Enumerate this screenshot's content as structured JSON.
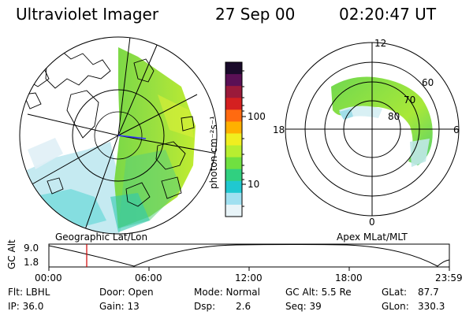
{
  "header": {
    "instrument": "Ultraviolet Imager",
    "date": "27 Sep 00",
    "time": "02:20:47 UT"
  },
  "left_panel": {
    "caption": "Geographic Lat/Lon"
  },
  "right_panel": {
    "caption": "Apex MLat/MLT",
    "mlt_labels": [
      "12",
      "18",
      "6",
      "0"
    ],
    "lat_labels": [
      "60",
      "70",
      "80"
    ]
  },
  "colorbar": {
    "unit_label": "photon cm⁻²s⁻¹",
    "ticks": [
      "100",
      "10"
    ],
    "colors": [
      "#1a0a2a",
      "#5a1055",
      "#9a1a3a",
      "#d42020",
      "#ff6a10",
      "#ffb000",
      "#f0ee20",
      "#b8ee30",
      "#70e040",
      "#30d080",
      "#20c8d0",
      "#a0e0f0",
      "#e8f4f8"
    ]
  },
  "timeline": {
    "ylabel": "GC Alt",
    "y_ticks": [
      "9.0",
      "1.8"
    ],
    "x_ticks": [
      "00:00",
      "06:00",
      "12:00",
      "18:00",
      "23:59"
    ],
    "cursor_time": "02:20"
  },
  "info": {
    "flt": "Flt: LBHL",
    "ip": "IP: 36.0",
    "door": "Door: Open",
    "gain": "Gain: 13",
    "mode": "Mode: Normal",
    "dsp_label": "Dsp:",
    "dsp_value": "2.6",
    "gc_alt": "GC Alt: 5.5 Re",
    "seq": "Seq: 39",
    "glat_label": "GLat:",
    "glat_value": "87.7",
    "glon_label": "GLon:",
    "glon_value": "330.3"
  }
}
